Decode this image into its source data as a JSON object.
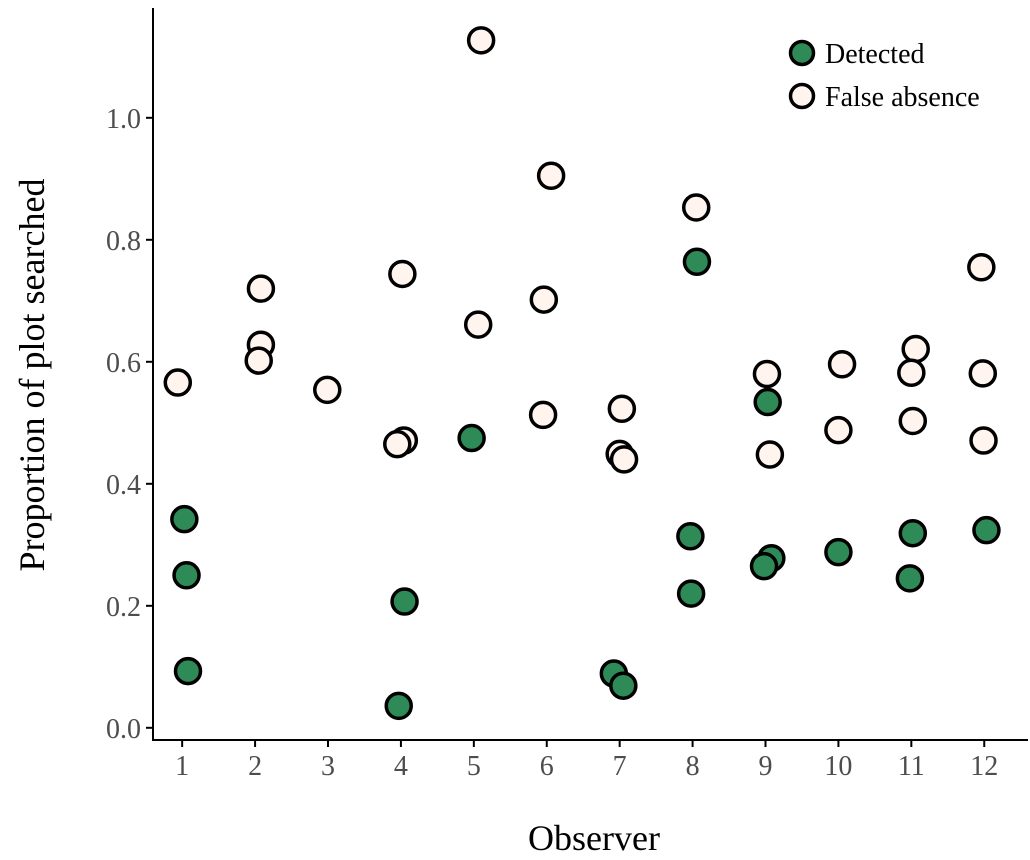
{
  "chart_data": {
    "type": "scatter",
    "xlabel": "Observer",
    "ylabel": "Proportion of plot searched",
    "x_categories": [
      "1",
      "2",
      "3",
      "4",
      "5",
      "6",
      "7",
      "8",
      "9",
      "10",
      "11",
      "12"
    ],
    "xlim": [
      0.6,
      12.6
    ],
    "ylim": [
      -0.02,
      1.18
    ],
    "yticks": [
      0.0,
      0.2,
      0.4,
      0.6,
      0.8,
      1.0
    ],
    "ytick_labels": [
      "0.0",
      "0.2",
      "0.4",
      "0.6",
      "0.8",
      "1.0"
    ],
    "grid": false,
    "legend_position": "top-right",
    "series": [
      {
        "name": "Detected",
        "color": "#2e8b57",
        "points": [
          {
            "x": 1.03,
            "y": 0.342
          },
          {
            "x": 1.06,
            "y": 0.25
          },
          {
            "x": 1.08,
            "y": 0.093
          },
          {
            "x": 4.05,
            "y": 0.207
          },
          {
            "x": 3.97,
            "y": 0.036
          },
          {
            "x": 4.97,
            "y": 0.475
          },
          {
            "x": 6.92,
            "y": 0.089
          },
          {
            "x": 7.05,
            "y": 0.069
          },
          {
            "x": 8.06,
            "y": 0.764
          },
          {
            "x": 7.97,
            "y": 0.314
          },
          {
            "x": 7.98,
            "y": 0.22
          },
          {
            "x": 9.03,
            "y": 0.534
          },
          {
            "x": 9.08,
            "y": 0.278
          },
          {
            "x": 8.98,
            "y": 0.265
          },
          {
            "x": 10.0,
            "y": 0.288
          },
          {
            "x": 11.02,
            "y": 0.319
          },
          {
            "x": 10.98,
            "y": 0.245
          },
          {
            "x": 12.03,
            "y": 0.324
          }
        ]
      },
      {
        "name": "False absence",
        "color": "#fff5ee",
        "points": [
          {
            "x": 0.94,
            "y": 0.566
          },
          {
            "x": 2.08,
            "y": 0.72
          },
          {
            "x": 2.08,
            "y": 0.628
          },
          {
            "x": 2.05,
            "y": 0.602
          },
          {
            "x": 2.99,
            "y": 0.554
          },
          {
            "x": 4.02,
            "y": 0.744
          },
          {
            "x": 4.04,
            "y": 0.471
          },
          {
            "x": 3.95,
            "y": 0.465
          },
          {
            "x": 5.1,
            "y": 1.127
          },
          {
            "x": 5.06,
            "y": 0.661
          },
          {
            "x": 6.06,
            "y": 0.905
          },
          {
            "x": 5.96,
            "y": 0.702
          },
          {
            "x": 5.95,
            "y": 0.513
          },
          {
            "x": 7.03,
            "y": 0.523
          },
          {
            "x": 7.0,
            "y": 0.449
          },
          {
            "x": 7.06,
            "y": 0.44
          },
          {
            "x": 8.05,
            "y": 0.853
          },
          {
            "x": 9.02,
            "y": 0.58
          },
          {
            "x": 9.06,
            "y": 0.448
          },
          {
            "x": 10.05,
            "y": 0.596
          },
          {
            "x": 10.0,
            "y": 0.488
          },
          {
            "x": 11.06,
            "y": 0.621
          },
          {
            "x": 11.0,
            "y": 0.582
          },
          {
            "x": 11.02,
            "y": 0.503
          },
          {
            "x": 11.96,
            "y": 0.755
          },
          {
            "x": 11.98,
            "y": 0.581
          },
          {
            "x": 11.99,
            "y": 0.471
          }
        ]
      }
    ]
  }
}
